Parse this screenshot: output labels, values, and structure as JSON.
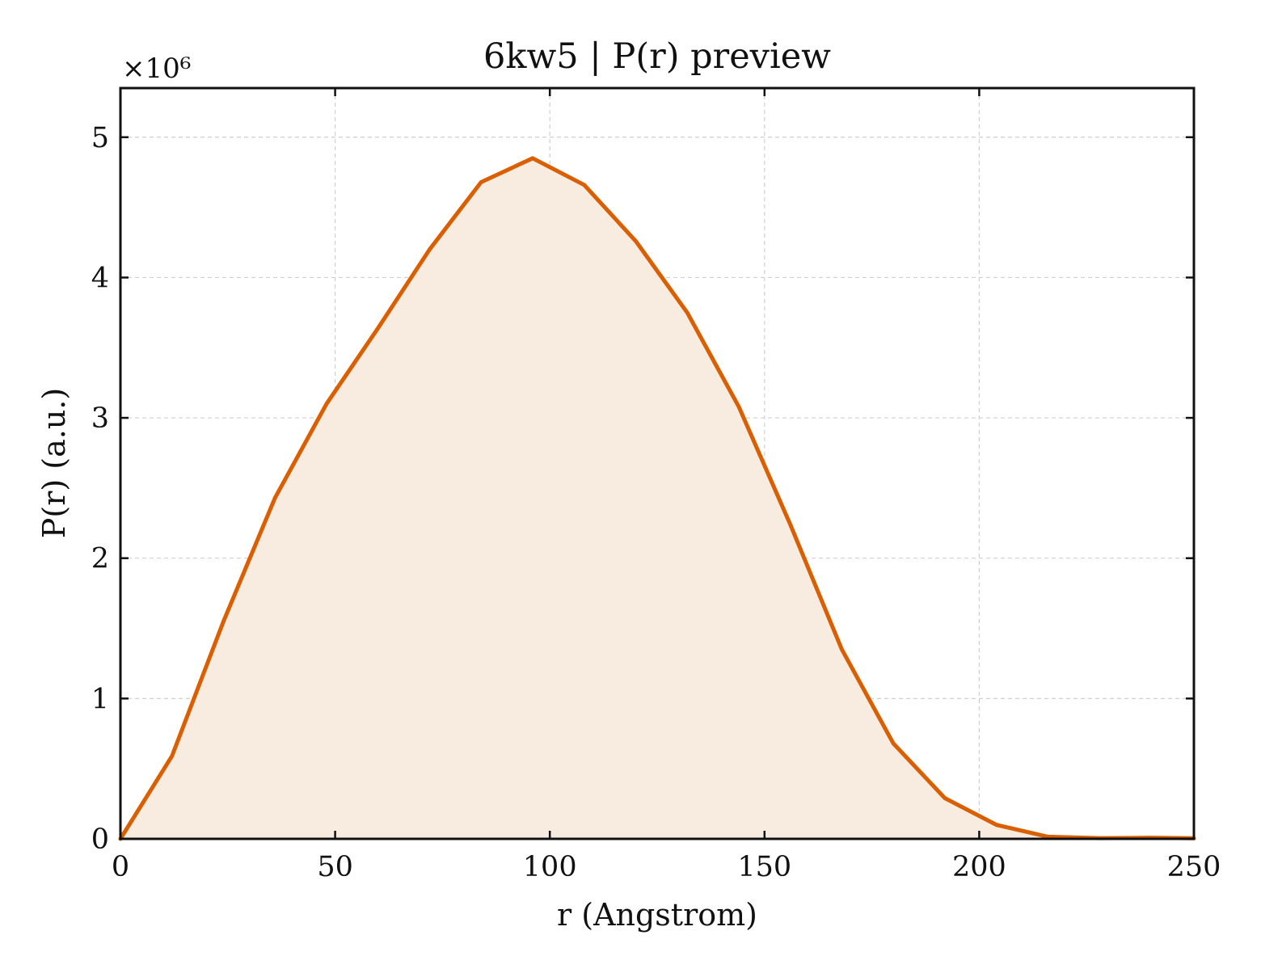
{
  "chart_data": {
    "type": "area",
    "title": "6kw5 | P(r) preview",
    "xlabel": "r (Angstrom)",
    "ylabel": "P(r) (a.u.)",
    "y_multiplier_label": "×10⁶",
    "xlim": [
      0,
      250
    ],
    "ylim": [
      0,
      5.35
    ],
    "y_scale_factor": 1000000,
    "xticks": [
      0,
      50,
      100,
      150,
      200,
      250
    ],
    "yticks": [
      0,
      1,
      2,
      3,
      4,
      5
    ],
    "grid": true,
    "legend": "none",
    "series": [
      {
        "color": "#d95f02",
        "fill_color": "#f8ebe0",
        "x": [
          0,
          12,
          24,
          36,
          48,
          60,
          72,
          84,
          96,
          108,
          120,
          132,
          144,
          156,
          168,
          180,
          192,
          204,
          216,
          228,
          240,
          250
        ],
        "y": [
          0,
          0.59,
          1.55,
          2.43,
          3.1,
          3.64,
          4.2,
          4.68,
          4.85,
          4.66,
          4.26,
          3.75,
          3.08,
          2.24,
          1.35,
          0.68,
          0.29,
          0.1,
          0.015,
          0.005,
          0.008,
          0.004
        ]
      }
    ]
  }
}
